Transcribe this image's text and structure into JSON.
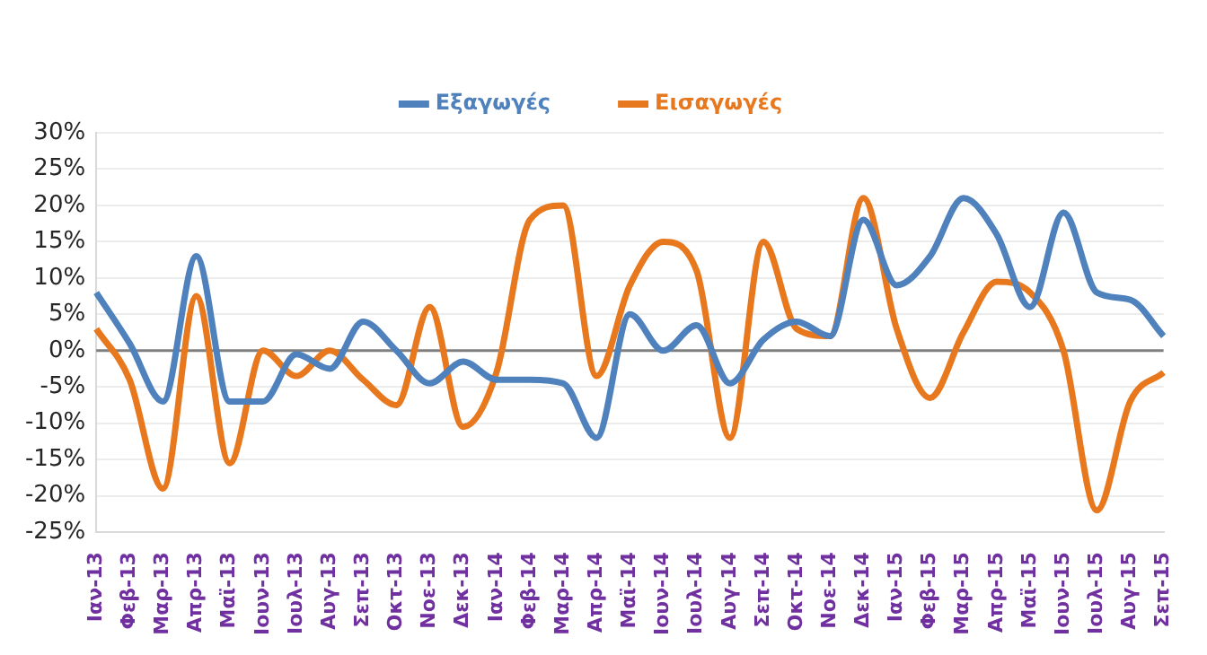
{
  "chart_data": {
    "type": "line",
    "categories": [
      "Ιαν-13",
      "Φεβ-13",
      "Μαρ-13",
      "Απρ-13",
      "Μαϊ-13",
      "Ιουν-13",
      "Ιουλ-13",
      "Αυγ-13",
      "Σεπ-13",
      "Οκτ-13",
      "Νοε-13",
      "Δεκ-13",
      "Ιαν-14",
      "Φεβ-14",
      "Μαρ-14",
      "Απρ-14",
      "Μαϊ-14",
      "Ιουν-14",
      "Ιουλ-14",
      "Αυγ-14",
      "Σεπ-14",
      "Οκτ-14",
      "Νοε-14",
      "Δεκ-14",
      "Ιαν-15",
      "Φεβ-15",
      "Μαρ-15",
      "Απρ-15",
      "Μαϊ-15",
      "Ιουν-15",
      "Ιουλ-15",
      "Αυγ-15",
      "Σεπ-15"
    ],
    "series": [
      {
        "name": "Εξαγωγές",
        "color": "#4f81bd",
        "values": [
          8,
          1,
          -7,
          13,
          -7,
          -7,
          -0.5,
          -2.5,
          4,
          0,
          -4.5,
          -1.5,
          -4,
          -4,
          -4.5,
          -12,
          5,
          0,
          3.5,
          -4.5,
          1.5,
          4,
          2,
          18,
          9,
          13,
          21,
          16,
          6,
          19,
          8,
          7,
          2
        ]
      },
      {
        "name": "Εισαγωγές",
        "color": "#e8781e",
        "values": [
          3,
          -4,
          -19,
          7.5,
          -15.5,
          0,
          -3.5,
          0,
          -4,
          -7.5,
          6,
          -10.5,
          -3,
          18,
          20,
          -3.5,
          9,
          15,
          11,
          -12,
          15,
          3,
          2,
          21,
          3,
          -6.5,
          2.5,
          9.5,
          8,
          0,
          -22,
          -7,
          -3
        ]
      }
    ],
    "ylim": [
      -25,
      30
    ],
    "yticks": [
      {
        "value": -25,
        "label": "-25%"
      },
      {
        "value": -20,
        "label": "-20%"
      },
      {
        "value": -15,
        "label": "-15%"
      },
      {
        "value": -10,
        "label": "-10%"
      },
      {
        "value": -5,
        "label": "-5%"
      },
      {
        "value": 0,
        "label": "0%"
      },
      {
        "value": 5,
        "label": "5%"
      },
      {
        "value": 10,
        "label": "10%"
      },
      {
        "value": 15,
        "label": "15%"
      },
      {
        "value": 20,
        "label": "20%"
      },
      {
        "value": 25,
        "label": "25%"
      },
      {
        "value": 30,
        "label": "30%"
      }
    ],
    "grid": "y",
    "legend": "top",
    "marker": "none",
    "line_style": "solid",
    "ref_lines": [
      {
        "axis": "y",
        "value": 0,
        "color": "#808080"
      }
    ]
  }
}
